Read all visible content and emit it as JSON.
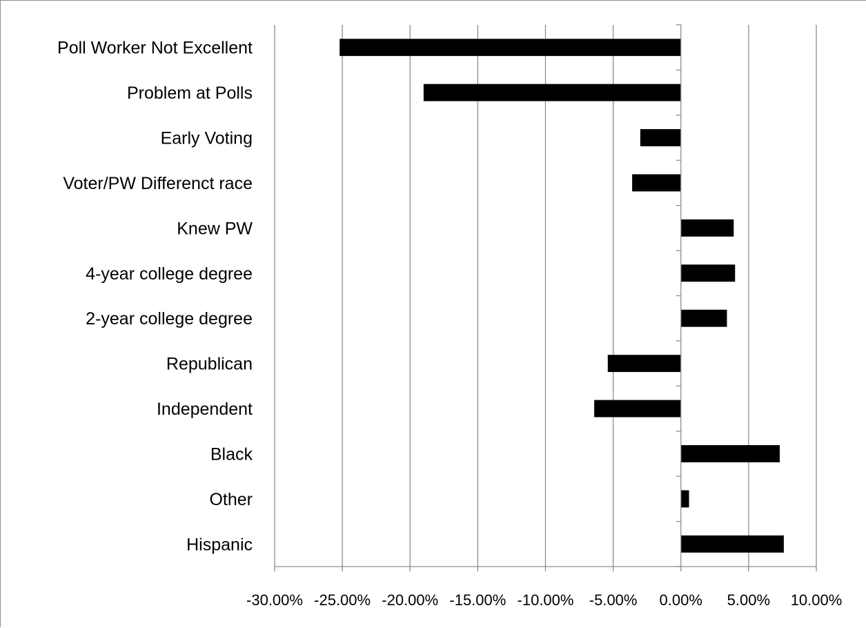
{
  "chart_data": {
    "type": "bar",
    "orientation": "horizontal",
    "title": "",
    "xlabel": "",
    "ylabel": "",
    "categories": [
      "Poll Worker Not Excellent",
      "Problem at Polls",
      "Early Voting",
      "Voter/PW Differenct race",
      "Knew PW",
      "4-year college degree",
      "2-year college degree",
      "Republican",
      "Independent",
      "Black",
      "Other",
      "Hispanic"
    ],
    "values": [
      -0.252,
      -0.19,
      -0.03,
      -0.036,
      0.039,
      0.04,
      0.034,
      -0.054,
      -0.064,
      0.073,
      0.006,
      0.076
    ],
    "xlim": [
      -0.3,
      0.1
    ],
    "xticks": [
      -0.3,
      -0.25,
      -0.2,
      -0.15,
      -0.1,
      -0.05,
      0.0,
      0.05,
      0.1
    ],
    "xtick_labels": [
      "-30.00%",
      "-25.00%",
      "-20.00%",
      "-15.00%",
      "-10.00%",
      "-5.00%",
      "0.00%",
      "5.00%",
      "10.00%"
    ],
    "grid": "vertical",
    "legend": "none",
    "colors": {
      "bar": "#000000",
      "grid": "#8c8c8c",
      "axis": "#8c8c8c",
      "background": "#ffffff"
    }
  }
}
